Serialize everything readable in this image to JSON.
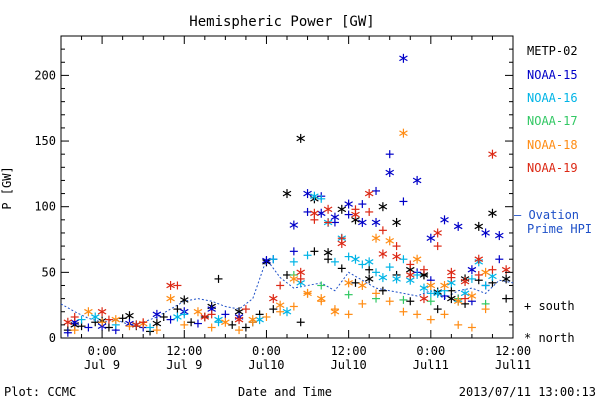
{
  "chart_data": {
    "type": "scatter",
    "title": "Hemispheric Power [GW]",
    "xlabel": "Date and Time",
    "ylabel": "P [GW]",
    "ylim": [
      0,
      230
    ],
    "yticks": [
      0,
      50,
      100,
      150,
      200
    ],
    "x_unit": "hours since 2013-07-08 18:00",
    "xlim": [
      0,
      66
    ],
    "xticks": [
      {
        "x": 6,
        "top": "0:00",
        "bottom": "Jul 9"
      },
      {
        "x": 18,
        "top": "12:00",
        "bottom": "Jul 9"
      },
      {
        "x": 30,
        "top": "0:00",
        "bottom": "Jul10"
      },
      {
        "x": 42,
        "top": "12:00",
        "bottom": "Jul10"
      },
      {
        "x": 54,
        "top": "0:00",
        "bottom": "Jul11"
      },
      {
        "x": 66,
        "top": "12:00",
        "bottom": "Jul11"
      }
    ],
    "grid": false,
    "legend_placement": "right",
    "series": [
      {
        "name": "METP-02",
        "color": "#000000",
        "marker": "+",
        "points": [
          [
            1,
            6
          ],
          [
            3,
            9
          ],
          [
            5,
            12
          ],
          [
            7,
            8
          ],
          [
            9,
            15
          ],
          [
            11,
            9
          ],
          [
            13,
            5
          ],
          [
            15,
            16
          ],
          [
            17,
            22
          ],
          [
            19,
            12
          ],
          [
            21,
            16
          ],
          [
            23,
            45
          ],
          [
            25,
            10
          ],
          [
            27,
            8
          ],
          [
            29,
            18
          ],
          [
            31,
            22
          ],
          [
            33,
            48
          ],
          [
            35,
            12
          ],
          [
            37,
            66
          ],
          [
            39,
            60
          ],
          [
            41,
            53
          ],
          [
            43,
            42
          ],
          [
            45,
            52
          ],
          [
            47,
            36
          ],
          [
            49,
            48
          ],
          [
            51,
            28
          ],
          [
            53,
            48
          ],
          [
            55,
            22
          ],
          [
            57,
            36
          ],
          [
            59,
            26
          ],
          [
            61,
            44
          ],
          [
            63,
            42
          ],
          [
            65,
            30
          ]
        ]
      },
      {
        "name": "METP-02",
        "color": "#000000",
        "marker": "*",
        "points": [
          [
            2,
            10
          ],
          [
            6,
            13
          ],
          [
            10,
            17
          ],
          [
            14,
            11
          ],
          [
            18,
            29
          ],
          [
            22,
            24
          ],
          [
            26,
            20
          ],
          [
            30,
            58
          ],
          [
            33,
            110
          ],
          [
            35,
            152
          ],
          [
            37,
            106
          ],
          [
            39,
            65
          ],
          [
            41,
            98
          ],
          [
            43,
            90
          ],
          [
            45,
            45
          ],
          [
            47,
            100
          ],
          [
            49,
            88
          ],
          [
            51,
            52
          ],
          [
            53,
            48
          ],
          [
            55,
            35
          ],
          [
            57,
            30
          ],
          [
            59,
            45
          ],
          [
            61,
            85
          ],
          [
            63,
            95
          ],
          [
            65,
            45
          ]
        ]
      },
      {
        "name": "NOAA-15",
        "color": "#0000c8",
        "marker": "+",
        "points": [
          [
            1,
            4
          ],
          [
            4,
            8
          ],
          [
            8,
            6
          ],
          [
            12,
            8
          ],
          [
            16,
            14
          ],
          [
            20,
            11
          ],
          [
            24,
            18
          ],
          [
            28,
            12
          ],
          [
            31,
            60
          ],
          [
            34,
            66
          ],
          [
            36,
            96
          ],
          [
            38,
            108
          ],
          [
            40,
            88
          ],
          [
            42,
            94
          ],
          [
            44,
            102
          ],
          [
            46,
            112
          ],
          [
            48,
            140
          ],
          [
            50,
            104
          ],
          [
            52,
            50
          ],
          [
            54,
            44
          ],
          [
            56,
            32
          ],
          [
            58,
            30
          ],
          [
            60,
            28
          ],
          [
            62,
            40
          ],
          [
            64,
            60
          ]
        ]
      },
      {
        "name": "NOAA-15",
        "color": "#0000c8",
        "marker": "*",
        "points": [
          [
            2,
            12
          ],
          [
            6,
            9
          ],
          [
            10,
            11
          ],
          [
            14,
            18
          ],
          [
            18,
            20
          ],
          [
            22,
            22
          ],
          [
            26,
            16
          ],
          [
            30,
            59
          ],
          [
            34,
            86
          ],
          [
            36,
            110
          ],
          [
            38,
            95
          ],
          [
            40,
            92
          ],
          [
            42,
            102
          ],
          [
            44,
            88
          ],
          [
            46,
            88
          ],
          [
            48,
            126
          ],
          [
            50,
            213
          ],
          [
            52,
            120
          ],
          [
            54,
            76
          ],
          [
            56,
            90
          ],
          [
            58,
            85
          ],
          [
            60,
            52
          ],
          [
            62,
            80
          ],
          [
            64,
            78
          ]
        ]
      },
      {
        "name": "NOAA-16",
        "color": "#00b4e6",
        "marker": "+",
        "points": [
          [
            3,
            14
          ],
          [
            8,
            10
          ],
          [
            13,
            8
          ],
          [
            18,
            18
          ],
          [
            23,
            12
          ],
          [
            28,
            12
          ],
          [
            31,
            60
          ],
          [
            34,
            58
          ],
          [
            36,
            63
          ],
          [
            38,
            106
          ],
          [
            40,
            58
          ],
          [
            42,
            62
          ],
          [
            44,
            56
          ],
          [
            46,
            50
          ],
          [
            48,
            54
          ],
          [
            50,
            60
          ],
          [
            52,
            48
          ],
          [
            54,
            34
          ],
          [
            56,
            36
          ],
          [
            58,
            28
          ],
          [
            60,
            45
          ],
          [
            62,
            40
          ]
        ]
      },
      {
        "name": "NOAA-16",
        "color": "#00b4e6",
        "marker": "*",
        "points": [
          [
            5,
            16
          ],
          [
            11,
            10
          ],
          [
            17,
            16
          ],
          [
            23,
            14
          ],
          [
            29,
            14
          ],
          [
            33,
            20
          ],
          [
            35,
            42
          ],
          [
            37,
            108
          ],
          [
            39,
            88
          ],
          [
            41,
            76
          ],
          [
            43,
            60
          ],
          [
            45,
            58
          ],
          [
            47,
            46
          ],
          [
            49,
            45
          ],
          [
            51,
            44
          ],
          [
            53,
            38
          ],
          [
            55,
            34
          ],
          [
            57,
            42
          ],
          [
            59,
            34
          ],
          [
            61,
            58
          ],
          [
            63,
            47
          ]
        ]
      },
      {
        "name": "NOAA-17",
        "color": "#32c864",
        "marker": "+",
        "points": [
          [
            34,
            48
          ],
          [
            38,
            40
          ],
          [
            42,
            33
          ],
          [
            46,
            30
          ],
          [
            50,
            29
          ],
          [
            54,
            28
          ],
          [
            58,
            30
          ],
          [
            62,
            26
          ]
        ]
      },
      {
        "name": "NOAA-18",
        "color": "#ff8c14",
        "marker": "+",
        "points": [
          [
            2,
            6
          ],
          [
            6,
            12
          ],
          [
            10,
            9
          ],
          [
            14,
            6
          ],
          [
            18,
            10
          ],
          [
            22,
            8
          ],
          [
            26,
            6
          ],
          [
            28,
            12
          ],
          [
            30,
            16
          ],
          [
            32,
            20
          ],
          [
            34,
            24
          ],
          [
            36,
            34
          ],
          [
            38,
            28
          ],
          [
            40,
            22
          ],
          [
            42,
            18
          ],
          [
            44,
            26
          ],
          [
            46,
            34
          ],
          [
            48,
            28
          ],
          [
            50,
            20
          ],
          [
            52,
            18
          ],
          [
            54,
            14
          ],
          [
            56,
            18
          ],
          [
            58,
            10
          ],
          [
            60,
            8
          ],
          [
            62,
            22
          ]
        ]
      },
      {
        "name": "NOAA-18",
        "color": "#ff8c14",
        "marker": "*",
        "points": [
          [
            4,
            20
          ],
          [
            8,
            14
          ],
          [
            12,
            11
          ],
          [
            16,
            30
          ],
          [
            20,
            20
          ],
          [
            24,
            12
          ],
          [
            28,
            14
          ],
          [
            32,
            25
          ],
          [
            34,
            45
          ],
          [
            36,
            34
          ],
          [
            38,
            30
          ],
          [
            40,
            20
          ],
          [
            42,
            42
          ],
          [
            44,
            40
          ],
          [
            46,
            76
          ],
          [
            48,
            74
          ],
          [
            50,
            156
          ],
          [
            52,
            60
          ],
          [
            54,
            40
          ],
          [
            56,
            40
          ],
          [
            58,
            28
          ],
          [
            60,
            32
          ],
          [
            62,
            50
          ]
        ]
      },
      {
        "name": "NOAA-19",
        "color": "#dc2814",
        "marker": "+",
        "points": [
          [
            2,
            16
          ],
          [
            7,
            14
          ],
          [
            12,
            12
          ],
          [
            17,
            40
          ],
          [
            22,
            18
          ],
          [
            27,
            22
          ],
          [
            32,
            40
          ],
          [
            35,
            45
          ],
          [
            37,
            90
          ],
          [
            39,
            88
          ],
          [
            41,
            76
          ],
          [
            43,
            98
          ],
          [
            45,
            96
          ],
          [
            47,
            82
          ],
          [
            49,
            70
          ],
          [
            51,
            56
          ],
          [
            53,
            52
          ],
          [
            55,
            70
          ],
          [
            57,
            46
          ],
          [
            59,
            30
          ],
          [
            61,
            48
          ],
          [
            63,
            52
          ]
        ]
      },
      {
        "name": "NOAA-19",
        "color": "#dc2814",
        "marker": "*",
        "points": [
          [
            1,
            12
          ],
          [
            6,
            20
          ],
          [
            11,
            10
          ],
          [
            16,
            40
          ],
          [
            21,
            16
          ],
          [
            26,
            14
          ],
          [
            31,
            30
          ],
          [
            35,
            50
          ],
          [
            37,
            95
          ],
          [
            39,
            98
          ],
          [
            41,
            72
          ],
          [
            43,
            94
          ],
          [
            45,
            110
          ],
          [
            47,
            64
          ],
          [
            49,
            62
          ],
          [
            51,
            48
          ],
          [
            53,
            30
          ],
          [
            55,
            80
          ],
          [
            57,
            50
          ],
          [
            59,
            43
          ],
          [
            61,
            60
          ],
          [
            63,
            140
          ],
          [
            65,
            52
          ]
        ]
      }
    ],
    "ovation_hpi": {
      "label": "Ovation Prime HPI",
      "color": "#1e50c8",
      "style": "dashed",
      "points": [
        [
          0,
          26
        ],
        [
          2,
          20
        ],
        [
          4,
          15
        ],
        [
          6,
          12
        ],
        [
          8,
          14
        ],
        [
          10,
          10
        ],
        [
          12,
          12
        ],
        [
          14,
          16
        ],
        [
          16,
          22
        ],
        [
          18,
          28
        ],
        [
          20,
          30
        ],
        [
          22,
          28
        ],
        [
          24,
          24
        ],
        [
          26,
          22
        ],
        [
          28,
          30
        ],
        [
          30,
          60
        ],
        [
          32,
          46
        ],
        [
          34,
          38
        ],
        [
          36,
          40
        ],
        [
          38,
          42
        ],
        [
          40,
          36
        ],
        [
          42,
          50
        ],
        [
          44,
          44
        ],
        [
          46,
          38
        ],
        [
          48,
          36
        ],
        [
          50,
          34
        ],
        [
          52,
          32
        ],
        [
          54,
          36
        ],
        [
          56,
          30
        ],
        [
          58,
          36
        ],
        [
          60,
          38
        ],
        [
          62,
          34
        ],
        [
          64,
          44
        ],
        [
          66,
          42
        ]
      ]
    }
  },
  "legend": {
    "entries": [
      {
        "label": "METP-02",
        "color": "#000000"
      },
      {
        "label": "NOAA-15",
        "color": "#0000c8"
      },
      {
        "label": "NOAA-16",
        "color": "#00b4e6"
      },
      {
        "label": "NOAA-17",
        "color": "#32c864"
      },
      {
        "label": "NOAA-18",
        "color": "#ff8c14"
      },
      {
        "label": "NOAA-19",
        "color": "#dc2814"
      }
    ],
    "ovation_line1": "— Ovation",
    "ovation_line2": "Prime HPI",
    "marker_south": "+ south",
    "marker_north": "* north"
  },
  "footer": {
    "plot_credit": "Plot: CCMC",
    "timestamp": "2013/07/11 13:00:13"
  }
}
